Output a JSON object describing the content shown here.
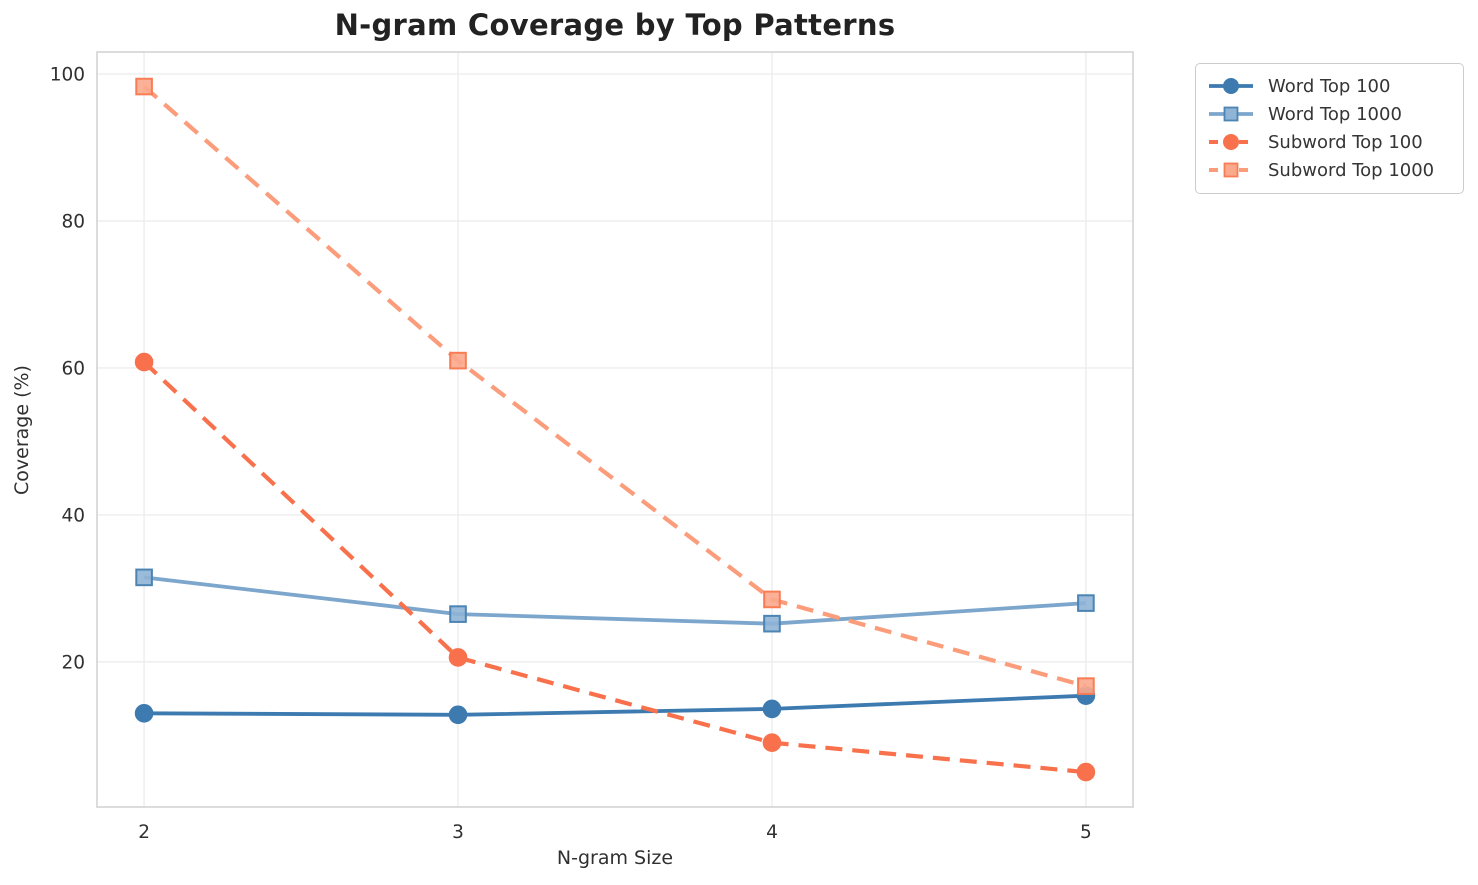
{
  "title": "N-gram Coverage by Top Patterns",
  "xlabel": "N-gram Size",
  "ylabel": "Coverage (%)",
  "chart_data": {
    "type": "line",
    "x": [
      2,
      3,
      4,
      5
    ],
    "xticks": [
      "2",
      "3",
      "4",
      "5"
    ],
    "yticks": [
      20,
      40,
      60,
      80,
      100
    ],
    "xlim": [
      1.85,
      5.15
    ],
    "ylim": [
      0.25,
      103.0
    ],
    "grid": true,
    "legend_position": "outside-top-right",
    "title": "N-gram Coverage by Top Patterns",
    "xlabel": "N-gram Size",
    "ylabel": "Coverage (%)",
    "series": [
      {
        "name": "Word Top 100",
        "values": [
          13.0,
          12.8,
          13.6,
          15.4
        ],
        "color": "#3C7AAF",
        "dash": "solid",
        "marker": "circle",
        "marker_fill": "#3C7AAF",
        "marker_edge": "#3C7AAF"
      },
      {
        "name": "Word Top 1000",
        "values": [
          31.5,
          26.5,
          25.2,
          28.0
        ],
        "color": "#7CA6CB",
        "dash": "solid",
        "marker": "square",
        "marker_fill": "#8FB4D6",
        "marker_edge": "#4C84B3"
      },
      {
        "name": "Subword Top 100",
        "values": [
          60.8,
          20.6,
          9.0,
          5.0
        ],
        "color": "#F8714C",
        "dash": "dashed",
        "marker": "circle",
        "marker_fill": "#F8714C",
        "marker_edge": "#F8714C"
      },
      {
        "name": "Subword Top 1000",
        "values": [
          98.3,
          61.0,
          28.5,
          16.7
        ],
        "color": "#FB9C7B",
        "dash": "dashed",
        "marker": "square",
        "marker_fill": "#FBA98C",
        "marker_edge": "#F87D54"
      }
    ]
  },
  "colors": {
    "background": "#FFFFFF",
    "grid": "#EDEDED",
    "spine": "#D3D3D3",
    "tick_text": "#303030",
    "title_text": "#222222",
    "legend_border": "#CCCCCC",
    "legend_text": "#353535"
  }
}
